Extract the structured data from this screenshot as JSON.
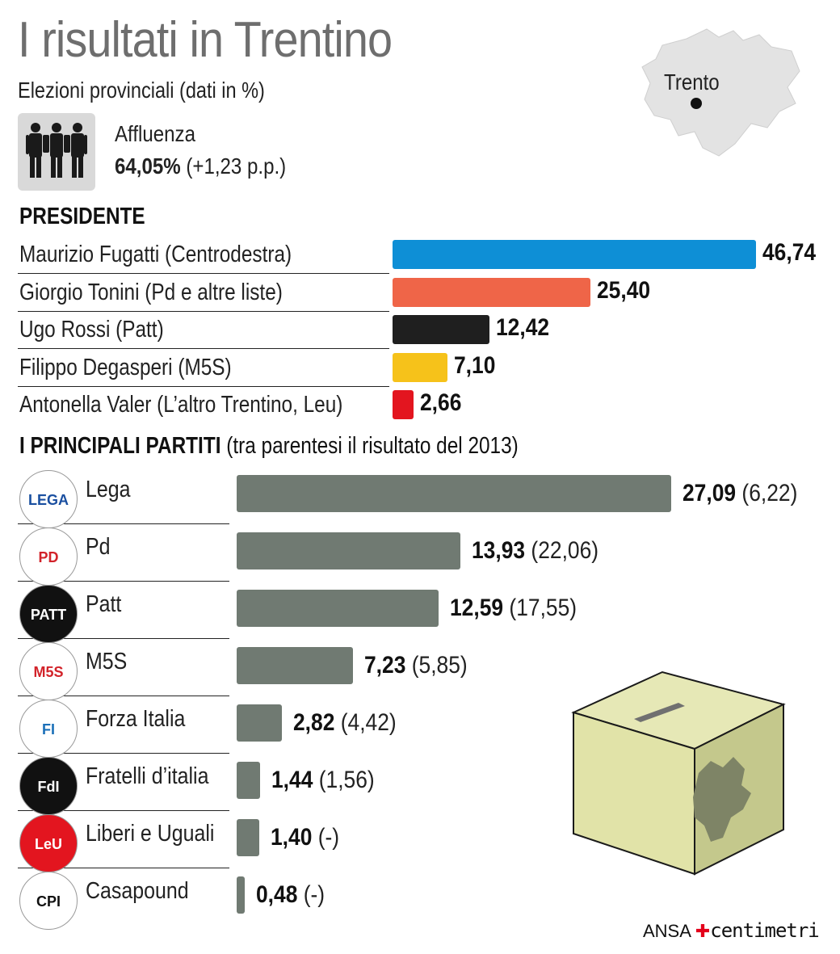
{
  "title": "I risultati in Trentino",
  "subtitle": "Elezioni provinciali (dati in %)",
  "turnout": {
    "label": "Affluenza",
    "value": "64,05%",
    "change": "(+1,23 p.p.)",
    "icon": "people-icon"
  },
  "map": {
    "city": "Trento",
    "fill": "#e3e3e3"
  },
  "source": {
    "agency": "ANSA",
    "brand": "centimetri"
  },
  "chart_data": [
    {
      "type": "bar",
      "title": "PRESIDENTE",
      "categories": [
        "Maurizio Fugatti (Centrodestra)",
        "Giorgio Tonini (Pd e altre liste)",
        "Ugo Rossi (Patt)",
        "Filippo Degasperi (M5S)",
        "Antonella Valer (L’altro Trentino, Leu)"
      ],
      "values": [
        46.74,
        25.4,
        12.42,
        7.1,
        2.66
      ],
      "labels": [
        "46,74",
        "25,40",
        "12,42",
        "7,10",
        "2,66"
      ],
      "colors": [
        "#0e8fd6",
        "#ef6548",
        "#1f1f1f",
        "#f6c21a",
        "#e3151f"
      ],
      "orientation": "horizontal"
    },
    {
      "type": "bar",
      "title": "I PRINCIPALI PARTITI",
      "title_note": "(tra parentesi il risultato del 2013)",
      "categories": [
        "Lega",
        "Pd",
        "Patt",
        "M5S",
        "Forza Italia",
        "Fratelli d’italia",
        "Liberi e Uguali",
        "Casapound"
      ],
      "values": [
        27.09,
        13.93,
        12.59,
        7.23,
        2.82,
        1.44,
        1.4,
        0.48
      ],
      "labels": [
        "27,09",
        "13,93",
        "12,59",
        "7,23",
        "2,82",
        "1,44",
        "1,40",
        "0,48"
      ],
      "previous_2013": [
        "(6,22)",
        "(22,06)",
        "(17,55)",
        "(5,85)",
        "(4,42)",
        "(1,56)",
        "(-)",
        "(-)"
      ],
      "color": "#707a72",
      "orientation": "horizontal",
      "logos": [
        "lega-logo-icon",
        "pd-logo-icon",
        "patt-logo-icon",
        "m5s-logo-icon",
        "forza-italia-logo-icon",
        "fratelli-italia-logo-icon",
        "leu-logo-icon",
        "casapound-logo-icon"
      ]
    }
  ]
}
